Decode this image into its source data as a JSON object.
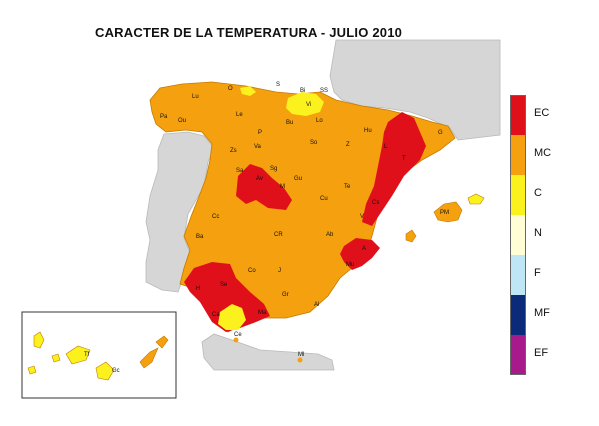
{
  "title": "CARACTER DE LA TEMPERATURA - JULIO 2010",
  "legend": [
    {
      "code": "EC",
      "color": "#e0101a"
    },
    {
      "code": "MC",
      "color": "#f5a00f"
    },
    {
      "code": "C",
      "color": "#fbf21d"
    },
    {
      "code": "N",
      "color": "#fefdd6"
    },
    {
      "code": "F",
      "color": "#bfe6f5"
    },
    {
      "code": "MF",
      "color": "#0b2a7a"
    },
    {
      "code": "EF",
      "color": "#a81a8c"
    }
  ],
  "cities": [
    {
      "id": "s",
      "label": "S"
    },
    {
      "id": "bi",
      "label": "Bi"
    },
    {
      "id": "ss",
      "label": "SS"
    },
    {
      "id": "o",
      "label": "O"
    },
    {
      "id": "lu",
      "label": "Lu"
    },
    {
      "id": "vi",
      "label": "Vi"
    },
    {
      "id": "pa",
      "label": "Pa"
    },
    {
      "id": "le",
      "label": "Le"
    },
    {
      "id": "ou",
      "label": "Ou"
    },
    {
      "id": "bu",
      "label": "Bu"
    },
    {
      "id": "lo",
      "label": "Lo"
    },
    {
      "id": "hu",
      "label": "Hu"
    },
    {
      "id": "g",
      "label": "G"
    },
    {
      "id": "p",
      "label": "P"
    },
    {
      "id": "zs",
      "label": "Zs"
    },
    {
      "id": "va",
      "label": "Va"
    },
    {
      "id": "so",
      "label": "So"
    },
    {
      "id": "z",
      "label": "Z"
    },
    {
      "id": "l",
      "label": "L"
    },
    {
      "id": "sa",
      "label": "Sa"
    },
    {
      "id": "sg",
      "label": "Sg"
    },
    {
      "id": "av",
      "label": "Av"
    },
    {
      "id": "gu",
      "label": "Gu"
    },
    {
      "id": "m",
      "label": "M"
    },
    {
      "id": "t",
      "label": "T"
    },
    {
      "id": "te",
      "label": "Te"
    },
    {
      "id": "cs",
      "label": "Cs"
    },
    {
      "id": "cu",
      "label": "Cu"
    },
    {
      "id": "pm",
      "label": "PM"
    },
    {
      "id": "cc",
      "label": "Cc"
    },
    {
      "id": "v",
      "label": "V"
    },
    {
      "id": "ba",
      "label": "Ba"
    },
    {
      "id": "cr",
      "label": "CR"
    },
    {
      "id": "ab",
      "label": "Ab"
    },
    {
      "id": "a",
      "label": "A"
    },
    {
      "id": "co",
      "label": "Co"
    },
    {
      "id": "j",
      "label": "J"
    },
    {
      "id": "mu",
      "label": "Mu"
    },
    {
      "id": "h",
      "label": "H"
    },
    {
      "id": "se",
      "label": "Se"
    },
    {
      "id": "gr",
      "label": "Gr"
    },
    {
      "id": "al",
      "label": "Al"
    },
    {
      "id": "ca",
      "label": "Ca"
    },
    {
      "id": "ma",
      "label": "Ma"
    },
    {
      "id": "ce",
      "label": "Ce"
    },
    {
      "id": "ml",
      "label": "Ml"
    },
    {
      "id": "tf",
      "label": "Tf"
    },
    {
      "id": "gc",
      "label": "Gc"
    }
  ]
}
